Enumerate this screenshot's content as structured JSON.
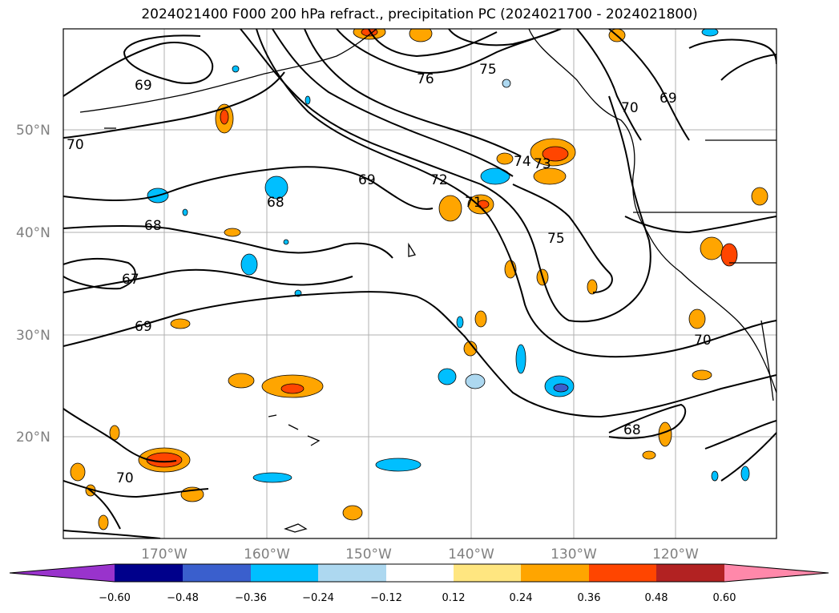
{
  "title": "2024021400 F000 200 hPa refract., precipitation PC (2024021700 - 2024021800)",
  "axes": {
    "lat_ticks": [
      "50°N",
      "40°N",
      "30°N",
      "20°N"
    ],
    "lon_ticks": [
      "170°W",
      "160°W",
      "150°W",
      "140°W",
      "130°W",
      "120°W"
    ],
    "grid": true,
    "grid_color": "#b0b0b0"
  },
  "contour_labels": [
    "69",
    "70",
    "68",
    "67",
    "69",
    "76",
    "75",
    "69",
    "72",
    "74",
    "73",
    "71",
    "75",
    "70",
    "69",
    "68",
    "70",
    "68",
    "70"
  ],
  "colorbar": {
    "ticks": [
      "−0.60",
      "−0.48",
      "−0.36",
      "−0.24",
      "−0.12",
      "0.12",
      "0.24",
      "0.36",
      "0.48",
      "0.60"
    ],
    "colors": [
      "#9933cc",
      "#00008b",
      "#3a5fcd",
      "#00bfff",
      "#add8f0",
      "#ffffff",
      "#ffe680",
      "#ffa500",
      "#ff4500",
      "#b22222",
      "#ff88aa"
    ]
  }
}
